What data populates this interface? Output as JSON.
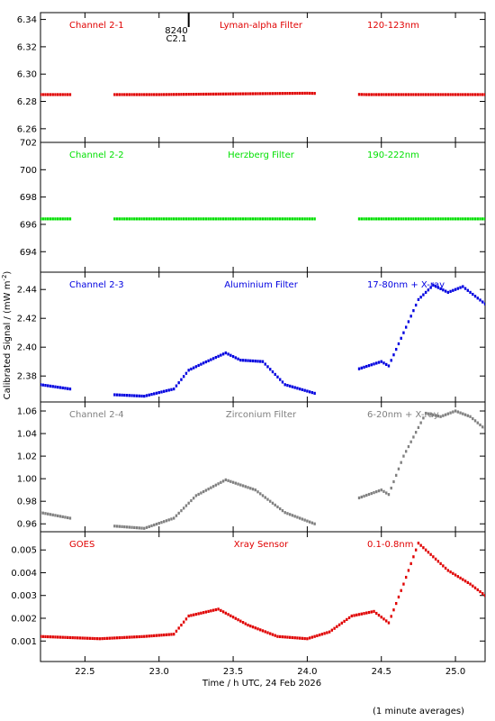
{
  "x_axis": {
    "label": "Time / h UTC, 24 Feb 2026",
    "ticks": [
      "22.5",
      "23.0",
      "23.5",
      "24.0",
      "24.5",
      "25.0"
    ],
    "range": [
      22.2,
      25.2
    ]
  },
  "y_axis_label": "Calibrated Signal / (mW m",
  "y_axis_label_sup": "-2",
  "y_axis_label_end": ")",
  "footnote": "(1 minute averages)",
  "flare_marker": {
    "line1": "8240",
    "line2": "C2.1",
    "time": 23.2
  },
  "panels": [
    {
      "name": "Channel 2-1",
      "filter": "Lyman-alpha Filter",
      "band": "120-123nm",
      "color": "#e00000",
      "ylim": [
        6.25,
        6.345
      ],
      "yticks": [
        "6.34",
        "6.32",
        "6.30",
        "6.28",
        "6.26"
      ]
    },
    {
      "name": "Channel 2-2",
      "filter": "Herzberg Filter",
      "band": "190-222nm",
      "color": "#00e000",
      "ylim": [
        692.5,
        702.0
      ],
      "yticks": [
        "702",
        "700",
        "698",
        "696",
        "694"
      ]
    },
    {
      "name": "Channel 2-3",
      "filter": "Aluminium Filter",
      "band": "17-80nm + X-ray",
      "color": "#0000e0",
      "ylim": [
        2.362,
        2.452
      ],
      "yticks": [
        "2.44",
        "2.42",
        "2.40",
        "2.38"
      ]
    },
    {
      "name": "Channel 2-4",
      "filter": "Zirconium Filter",
      "band": "6-20nm + X-ray",
      "color": "#808080",
      "ylim": [
        0.953,
        1.068
      ],
      "yticks": [
        "1.06",
        "1.04",
        "1.02",
        "1.00",
        "0.98",
        "0.96"
      ]
    },
    {
      "name": "GOES",
      "filter": "Xray Sensor",
      "band": "0.1-0.8nm",
      "color": "#e00000",
      "ylim": [
        0.0001,
        0.0058
      ],
      "yticks": [
        "0.005",
        "0.004",
        "0.003",
        "0.002",
        "0.001"
      ]
    }
  ],
  "chart_data": [
    {
      "type": "scatter",
      "title": "Channel 2-1 Lyman-alpha Filter 120-123nm",
      "segments": [
        [
          22.2,
          22.4
        ],
        [
          22.7,
          24.05
        ],
        [
          24.35,
          25.2
        ]
      ],
      "x": [
        22.2,
        23.0,
        24.0,
        24.4,
        25.2
      ],
      "y": [
        6.285,
        6.285,
        6.286,
        6.285,
        6.285
      ]
    },
    {
      "type": "scatter",
      "title": "Channel 2-2 Herzberg Filter 190-222nm",
      "segments": [
        [
          22.2,
          22.4
        ],
        [
          22.7,
          24.05
        ],
        [
          24.35,
          25.2
        ]
      ],
      "x": [
        22.2,
        23.0,
        24.0,
        24.4,
        25.2
      ],
      "y": [
        696.4,
        696.4,
        696.4,
        696.4,
        696.4
      ]
    },
    {
      "type": "scatter",
      "title": "Channel 2-3 Aluminium Filter 17-80nm + X-ray",
      "segments": [
        [
          22.2,
          22.4
        ],
        [
          22.7,
          24.05
        ],
        [
          24.35,
          25.2
        ]
      ],
      "x": [
        22.2,
        22.4,
        22.7,
        22.9,
        23.1,
        23.2,
        23.3,
        23.45,
        23.55,
        23.7,
        23.85,
        24.05,
        24.35,
        24.5,
        24.55,
        24.65,
        24.75,
        24.85,
        24.95,
        25.05,
        25.2
      ],
      "y": [
        2.374,
        2.371,
        2.367,
        2.366,
        2.371,
        2.384,
        2.389,
        2.396,
        2.391,
        2.39,
        2.374,
        2.368,
        2.385,
        2.39,
        2.387,
        2.41,
        2.433,
        2.443,
        2.438,
        2.442,
        2.43
      ]
    },
    {
      "type": "scatter",
      "title": "Channel 2-4 Zirconium Filter 6-20nm + X-ray",
      "segments": [
        [
          22.2,
          22.4
        ],
        [
          22.7,
          24.05
        ],
        [
          24.35,
          25.2
        ]
      ],
      "x": [
        22.2,
        22.4,
        22.7,
        22.9,
        23.1,
        23.25,
        23.45,
        23.65,
        23.85,
        24.05,
        24.35,
        24.5,
        24.55,
        24.65,
        24.8,
        24.9,
        25.0,
        25.1,
        25.2
      ],
      "y": [
        0.97,
        0.965,
        0.958,
        0.956,
        0.965,
        0.985,
        0.999,
        0.99,
        0.97,
        0.96,
        0.983,
        0.99,
        0.986,
        1.02,
        1.058,
        1.055,
        1.06,
        1.055,
        1.044
      ]
    },
    {
      "type": "scatter",
      "title": "GOES Xray Sensor 0.1-0.8nm",
      "segments": [
        [
          22.2,
          25.2
        ]
      ],
      "x": [
        22.2,
        22.6,
        22.9,
        23.1,
        23.2,
        23.4,
        23.6,
        23.8,
        24.0,
        24.15,
        24.3,
        24.45,
        24.55,
        24.65,
        24.75,
        24.85,
        24.95,
        25.1,
        25.2
      ],
      "y": [
        0.0012,
        0.0011,
        0.0012,
        0.0013,
        0.0021,
        0.0024,
        0.0017,
        0.0012,
        0.0011,
        0.0014,
        0.0021,
        0.0023,
        0.0018,
        0.0035,
        0.0053,
        0.0047,
        0.0041,
        0.0035,
        0.003
      ]
    }
  ]
}
